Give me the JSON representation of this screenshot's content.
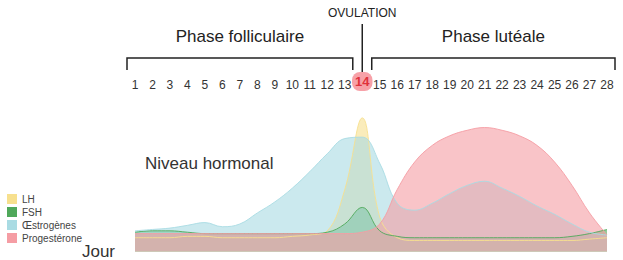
{
  "chart_data": {
    "type": "area",
    "xlabel": "Jour",
    "ylabel": "Niveau hormonal",
    "annotations": [
      {
        "text": "Phase folliculaire",
        "x": [
          1,
          13
        ]
      },
      {
        "text": "OVULATION",
        "x": 14
      },
      {
        "text": "Phase lutéale",
        "x": [
          15,
          28
        ]
      }
    ],
    "categories": [
      1,
      2,
      3,
      4,
      5,
      6,
      7,
      8,
      9,
      10,
      11,
      12,
      13,
      14,
      15,
      16,
      17,
      18,
      19,
      20,
      21,
      22,
      23,
      24,
      25,
      26,
      27,
      28
    ],
    "series": [
      {
        "name": "LH",
        "color": "#f7e08e",
        "values": [
          10,
          10,
          10,
          11,
          11,
          10,
          10,
          10,
          10,
          11,
          12,
          15,
          45,
          97,
          25,
          10,
          8,
          8,
          8,
          8,
          8,
          8,
          8,
          8,
          8,
          8,
          9,
          10
        ]
      },
      {
        "name": "FSH",
        "color": "#4fa85a",
        "values": [
          14,
          15,
          15,
          14,
          13,
          13,
          13,
          13,
          13,
          13,
          13,
          14,
          20,
          32,
          15,
          11,
          10,
          10,
          10,
          10,
          10,
          10,
          10,
          10,
          10,
          11,
          13,
          16
        ]
      },
      {
        "name": "Œstrogènes",
        "color": "#a9dbe3",
        "values": [
          15,
          16,
          17,
          19,
          21,
          18,
          20,
          28,
          36,
          46,
          58,
          71,
          82,
          83,
          64,
          35,
          30,
          35,
          42,
          48,
          51,
          46,
          40,
          33,
          27,
          20,
          14,
          12
        ]
      },
      {
        "name": "Progestérone",
        "color": "#f59da4",
        "values": [
          13,
          13,
          13,
          13,
          13,
          13,
          13,
          13,
          13,
          13,
          13,
          13,
          13,
          14,
          20,
          45,
          65,
          77,
          84,
          88,
          90,
          88,
          84,
          77,
          65,
          48,
          28,
          12
        ]
      }
    ],
    "ylim": [
      0,
      110
    ],
    "grid": false,
    "legend": "bottom-left",
    "tick_labels": "x",
    "marker": "none",
    "line_style": "smooth"
  }
}
